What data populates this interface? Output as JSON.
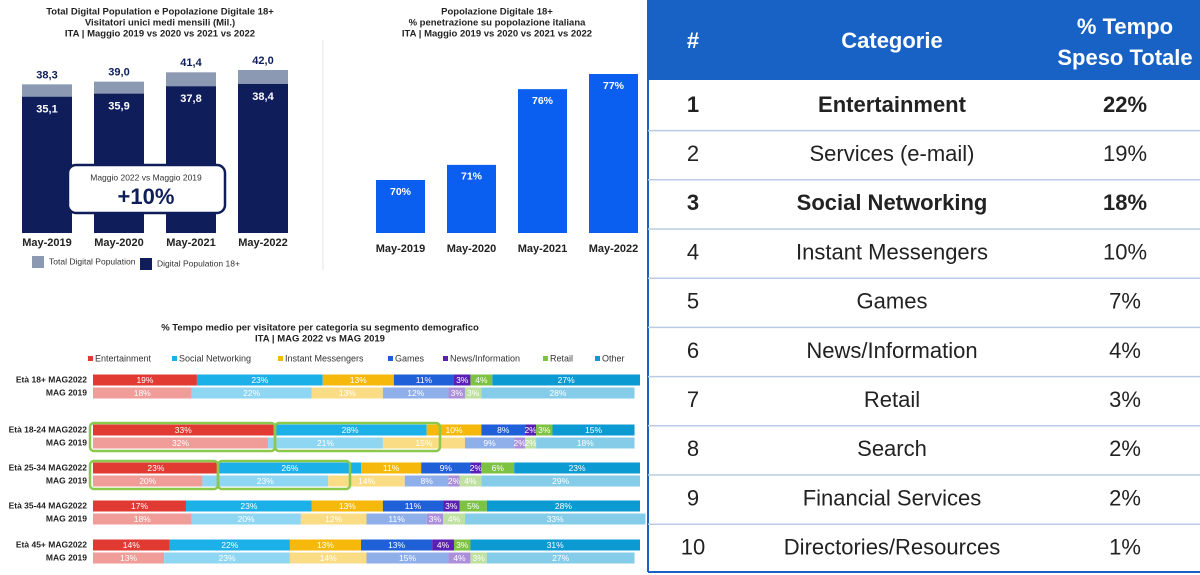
{
  "chart_data": [
    {
      "type": "overlap_bar",
      "title": [
        "Total Digital Population e Popolazione Digitale 18+",
        "Visitatori unici medi mensili (Mil.)",
        "ITA | Maggio 2019 vs 2020 vs 2021 vs 2022"
      ],
      "categories": [
        "May-2019",
        "May-2020",
        "May-2021",
        "May-2022"
      ],
      "series": [
        {
          "name": "Total Digital Population",
          "color": "#8c99b3",
          "values": [
            38.3,
            39.0,
            41.4,
            42.0
          ],
          "value_labels": [
            "38,3",
            "39,0",
            "41,4",
            "42,0"
          ]
        },
        {
          "name": "Digital Population 18+",
          "color": "#0f1e5a",
          "values": [
            35.1,
            35.9,
            37.8,
            38.4
          ],
          "value_labels": [
            "35,1",
            "35,9",
            "37,8",
            "38,4"
          ]
        }
      ],
      "ylim": [
        0,
        42
      ],
      "annotation": [
        "Maggio 2022 vs Maggio 2019",
        "+10%"
      ]
    },
    {
      "type": "bar",
      "title": [
        "Popolazione Digitale 18+",
        "% penetrazione su popolazione italiana",
        "ITA | Maggio 2019 vs 2020 vs 2021 vs 2022"
      ],
      "categories": [
        "May-2019",
        "May-2020",
        "May-2021",
        "May-2022"
      ],
      "values": [
        70,
        71,
        76,
        77
      ],
      "value_labels": [
        "70%",
        "71%",
        "76%",
        "77%"
      ],
      "color": "#0a5ff0",
      "ylim": [
        66.5,
        77
      ]
    },
    {
      "type": "stacked_barh",
      "title": [
        "% Tempo medio per visitatore per categoria su segmento demografico",
        "ITA | MAG 2022 vs MAG 2019"
      ],
      "categories": [
        "Età 18+ MAG2022",
        "MAG 2019",
        "Età 18-24 MAG2022",
        "MAG 2019",
        "Età 25-34 MAG2022",
        "MAG 2019",
        "Età 35-44 MAG2022",
        "MAG 2019",
        "Età 45+ MAG2022",
        "MAG 2019"
      ],
      "xlim": [
        0,
        100
      ],
      "series": [
        {
          "name": "Entertainment",
          "color": "#e03a33",
          "color_2019": "#f09c98",
          "values": [
            19,
            18,
            33,
            32,
            23,
            20,
            17,
            18,
            14,
            13
          ],
          "value_labels": [
            "19%",
            "18%",
            "33%",
            "32%",
            "23%",
            "20%",
            "17%",
            "18%",
            "14%",
            "13%"
          ]
        },
        {
          "name": "Social Networking",
          "color": "#1cb0e8",
          "color_2019": "#8fd6f3",
          "values": [
            23,
            22,
            28,
            21,
            26,
            23,
            23,
            20,
            22,
            23
          ],
          "value_labels": [
            "23%",
            "22%",
            "28%",
            "21%",
            "26%",
            "23%",
            "23%",
            "20%",
            "22%",
            "23%"
          ]
        },
        {
          "name": "Instant Messengers",
          "color": "#f6b90b",
          "color_2019": "#fadc85",
          "values": [
            13,
            13,
            10,
            15,
            11,
            14,
            13,
            12,
            13,
            14
          ],
          "value_labels": [
            "13%",
            "13%",
            "10%",
            "15%",
            "11%",
            "14%",
            "13%",
            "12%",
            "13%",
            "14%"
          ]
        },
        {
          "name": "Games",
          "color": "#1f5fd8",
          "color_2019": "#8fafeb",
          "values": [
            11,
            12,
            8,
            9,
            9,
            8,
            11,
            11,
            13,
            15
          ],
          "value_labels": [
            "11%",
            "12%",
            "8%",
            "9%",
            "9%",
            "8%",
            "11%",
            "11%",
            "13%",
            "15%"
          ]
        },
        {
          "name": "News/Information",
          "color": "#5a1fb5",
          "color_2019": "#ac8fda",
          "values": [
            3,
            3,
            2,
            2,
            2,
            2,
            3,
            3,
            4,
            4
          ],
          "value_labels": [
            "3%",
            "3%",
            "2%",
            "2%",
            "2%",
            "2%",
            "3%",
            "3%",
            "4%",
            "4%"
          ]
        },
        {
          "name": "Retail",
          "color": "#7dc242",
          "color_2019": "#bee0a0",
          "values": [
            4,
            3,
            3,
            2,
            6,
            4,
            5,
            4,
            3,
            3
          ],
          "value_labels": [
            "4%",
            "3%",
            "3%",
            "2%",
            "6%",
            "4%",
            "5%",
            "4%",
            "3%",
            "3%"
          ]
        },
        {
          "name": "Other",
          "color": "#0b9ad2",
          "color_2019": "#85cce8",
          "values": [
            27,
            28,
            15,
            18,
            23,
            29,
            28,
            33,
            31,
            27
          ],
          "value_labels": [
            "27%",
            "28%",
            "15%",
            "18%",
            "23%",
            "29%",
            "28%",
            "33%",
            "31%",
            "27%"
          ]
        }
      ]
    }
  ],
  "table": {
    "header": [
      "#",
      "Categorie",
      [
        "% Tempo",
        "Speso Totale"
      ]
    ],
    "rows": [
      [
        "1",
        "Entertainment",
        "22%"
      ],
      [
        "2",
        "Services (e-mail)",
        "19%"
      ],
      [
        "3",
        "Social Networking",
        "18%"
      ],
      [
        "4",
        "Instant Messengers",
        "10%"
      ],
      [
        "5",
        "Games",
        "7%"
      ],
      [
        "6",
        "News/Information",
        "4%"
      ],
      [
        "7",
        "Retail",
        "3%"
      ],
      [
        "8",
        "Search",
        "2%"
      ],
      [
        "9",
        "Financial Services",
        "2%"
      ],
      [
        "10",
        "Directories/Resources",
        "1%"
      ]
    ],
    "bold_rows": [
      0,
      2
    ]
  }
}
